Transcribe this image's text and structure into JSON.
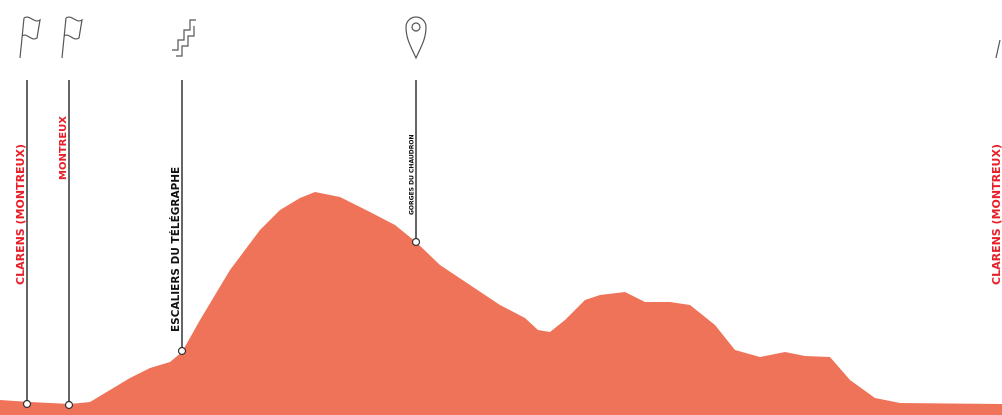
{
  "waypoints": [
    {
      "label": "CLARENS (MONTREUX)"
    },
    {
      "label": "MONTREUX"
    },
    {
      "label": "ESCALIERS DU TÉLÉGRAPHE"
    },
    {
      "label": "GORGES DU CHAUDRON"
    },
    {
      "label": "CLARENS (MONTREUX)"
    }
  ]
}
